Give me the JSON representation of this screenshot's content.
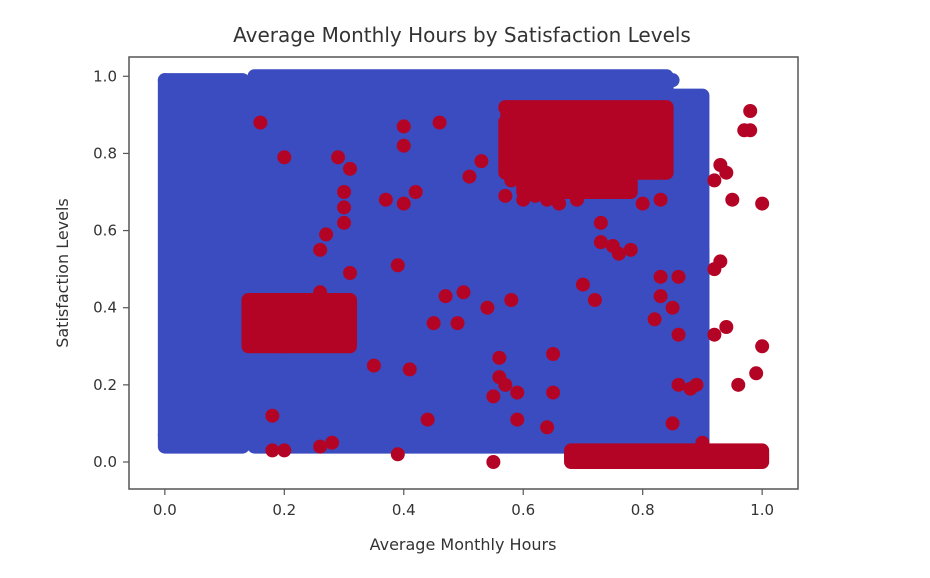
{
  "chart_data": {
    "type": "scatter",
    "title": "Average Monthly Hours by Satisfaction Levels",
    "xlabel": "Average Monthly Hours",
    "ylabel": "Satisfaction Levels",
    "xlim": [
      -0.06,
      1.06
    ],
    "ylim": [
      -0.07,
      1.05
    ],
    "xticks": [
      0.0,
      0.2,
      0.4,
      0.6,
      0.8,
      1.0
    ],
    "xtick_labels": [
      "0.0",
      "0.2",
      "0.4",
      "0.6",
      "0.8",
      "1.0"
    ],
    "yticks": [
      0.0,
      0.2,
      0.4,
      0.6,
      0.8,
      1.0
    ],
    "ytick_labels": [
      "0.0",
      "0.2",
      "0.4",
      "0.6",
      "0.8",
      "1.0"
    ],
    "grid": false,
    "series": [
      {
        "color": "#3a4cc0",
        "points": [
          [
            0.0,
            0.99
          ],
          [
            0.03,
            0.97
          ],
          [
            0.06,
            0.93
          ],
          [
            0.09,
            0.98
          ],
          [
            0.12,
            0.95
          ],
          [
            0.01,
            0.85
          ],
          [
            0.05,
            0.8
          ],
          [
            0.1,
            0.82
          ],
          [
            0.02,
            0.72
          ],
          [
            0.07,
            0.68
          ],
          [
            0.12,
            0.63
          ],
          [
            0.03,
            0.55
          ],
          [
            0.08,
            0.5
          ],
          [
            0.01,
            0.45
          ],
          [
            0.05,
            0.4
          ],
          [
            0.11,
            0.36
          ],
          [
            0.02,
            0.28
          ],
          [
            0.07,
            0.24
          ],
          [
            0.12,
            0.2
          ],
          [
            0.01,
            0.15
          ],
          [
            0.05,
            0.1
          ],
          [
            0.09,
            0.06
          ],
          [
            0.0,
            0.07
          ],
          [
            0.13,
            0.04
          ],
          [
            0.15,
            0.5
          ],
          [
            0.18,
            0.98
          ],
          [
            0.22,
            0.96
          ],
          [
            0.28,
            0.99
          ],
          [
            0.35,
            0.97
          ],
          [
            0.42,
            0.98
          ],
          [
            0.5,
            0.99
          ],
          [
            0.58,
            0.97
          ],
          [
            0.65,
            0.98
          ],
          [
            0.72,
            0.99
          ],
          [
            0.8,
            0.98
          ],
          [
            0.85,
            0.99
          ],
          [
            0.25,
            0.85
          ],
          [
            0.32,
            0.9
          ],
          [
            0.4,
            0.85
          ],
          [
            0.48,
            0.8
          ],
          [
            0.55,
            0.9
          ],
          [
            0.3,
            0.72
          ],
          [
            0.38,
            0.65
          ],
          [
            0.45,
            0.7
          ],
          [
            0.52,
            0.6
          ],
          [
            0.6,
            0.55
          ],
          [
            0.68,
            0.5
          ],
          [
            0.75,
            0.58
          ],
          [
            0.82,
            0.52
          ],
          [
            0.88,
            0.55
          ],
          [
            0.22,
            0.55
          ],
          [
            0.28,
            0.48
          ],
          [
            0.35,
            0.44
          ],
          [
            0.42,
            0.38
          ],
          [
            0.5,
            0.3
          ],
          [
            0.58,
            0.34
          ],
          [
            0.66,
            0.28
          ],
          [
            0.74,
            0.32
          ],
          [
            0.82,
            0.26
          ],
          [
            0.88,
            0.3
          ],
          [
            0.2,
            0.2
          ],
          [
            0.28,
            0.16
          ],
          [
            0.36,
            0.2
          ],
          [
            0.44,
            0.14
          ],
          [
            0.52,
            0.18
          ],
          [
            0.6,
            0.12
          ],
          [
            0.68,
            0.18
          ],
          [
            0.76,
            0.14
          ],
          [
            0.84,
            0.1
          ],
          [
            0.9,
            0.06
          ],
          [
            0.25,
            0.06
          ],
          [
            0.33,
            0.09
          ],
          [
            0.41,
            0.05
          ],
          [
            0.49,
            0.08
          ],
          [
            0.57,
            0.05
          ],
          [
            0.65,
            0.07
          ],
          [
            0.16,
            0.04
          ],
          [
            0.88,
            0.78
          ],
          [
            0.89,
            0.85
          ],
          [
            0.87,
            0.65
          ]
        ],
        "regions": [
          [
            0.0,
            0.13,
            0.04,
            0.99
          ],
          [
            0.15,
            0.84,
            0.55,
            1.0
          ],
          [
            0.15,
            0.9,
            0.04,
            0.55
          ],
          [
            0.84,
            0.9,
            0.04,
            0.95
          ]
        ]
      },
      {
        "color": "#b40426",
        "points": [
          [
            0.16,
            0.88
          ],
          [
            0.2,
            0.79
          ],
          [
            0.29,
            0.79
          ],
          [
            0.3,
            0.7
          ],
          [
            0.3,
            0.66
          ],
          [
            0.3,
            0.62
          ],
          [
            0.31,
            0.76
          ],
          [
            0.27,
            0.59
          ],
          [
            0.26,
            0.55
          ],
          [
            0.31,
            0.49
          ],
          [
            0.39,
            0.51
          ],
          [
            0.37,
            0.68
          ],
          [
            0.4,
            0.67
          ],
          [
            0.42,
            0.7
          ],
          [
            0.4,
            0.87
          ],
          [
            0.4,
            0.82
          ],
          [
            0.46,
            0.88
          ],
          [
            0.51,
            0.74
          ],
          [
            0.53,
            0.78
          ],
          [
            0.47,
            0.43
          ],
          [
            0.49,
            0.36
          ],
          [
            0.54,
            0.4
          ],
          [
            0.58,
            0.42
          ],
          [
            0.56,
            0.27
          ],
          [
            0.56,
            0.22
          ],
          [
            0.57,
            0.2
          ],
          [
            0.59,
            0.18
          ],
          [
            0.55,
            0.17
          ],
          [
            0.59,
            0.11
          ],
          [
            0.64,
            0.09
          ],
          [
            0.65,
            0.28
          ],
          [
            0.65,
            0.18
          ],
          [
            0.55,
            0.0
          ],
          [
            0.44,
            0.11
          ],
          [
            0.39,
            0.02
          ],
          [
            0.28,
            0.05
          ],
          [
            0.26,
            0.04
          ],
          [
            0.2,
            0.03
          ],
          [
            0.18,
            0.03
          ],
          [
            0.18,
            0.12
          ],
          [
            0.2,
            0.3
          ],
          [
            0.26,
            0.44
          ],
          [
            0.35,
            0.25
          ],
          [
            0.41,
            0.24
          ],
          [
            0.7,
            0.46
          ],
          [
            0.72,
            0.42
          ],
          [
            0.73,
            0.57
          ],
          [
            0.75,
            0.56
          ],
          [
            0.73,
            0.62
          ],
          [
            0.76,
            0.54
          ],
          [
            0.78,
            0.55
          ],
          [
            0.83,
            0.48
          ],
          [
            0.86,
            0.48
          ],
          [
            0.85,
            0.4
          ],
          [
            0.86,
            0.33
          ],
          [
            0.82,
            0.37
          ],
          [
            0.83,
            0.43
          ],
          [
            0.86,
            0.2
          ],
          [
            0.88,
            0.19
          ],
          [
            0.85,
            0.1
          ],
          [
            0.9,
            0.05
          ],
          [
            0.92,
            0.33
          ],
          [
            0.92,
            0.5
          ],
          [
            0.93,
            0.52
          ],
          [
            0.94,
            0.35
          ],
          [
            0.93,
            0.77
          ],
          [
            0.94,
            0.75
          ],
          [
            0.92,
            0.73
          ],
          [
            0.95,
            0.68
          ],
          [
            0.97,
            0.86
          ],
          [
            0.98,
            0.86
          ],
          [
            0.98,
            0.91
          ],
          [
            1.0,
            0.67
          ],
          [
            1.0,
            0.3
          ],
          [
            0.99,
            0.23
          ],
          [
            0.96,
            0.2
          ],
          [
            0.89,
            0.2
          ],
          [
            0.62,
            0.69
          ],
          [
            0.64,
            0.68
          ],
          [
            0.66,
            0.67
          ],
          [
            0.69,
            0.68
          ],
          [
            0.71,
            0.73
          ],
          [
            0.75,
            0.72
          ],
          [
            0.8,
            0.67
          ],
          [
            0.83,
            0.68
          ],
          [
            0.58,
            0.73
          ],
          [
            0.6,
            0.68
          ],
          [
            0.57,
            0.69
          ],
          [
            0.5,
            0.44
          ],
          [
            0.45,
            0.36
          ]
        ],
        "regions": [
          [
            0.14,
            0.31,
            0.3,
            0.42
          ],
          [
            0.57,
            0.84,
            0.75,
            0.92
          ],
          [
            0.6,
            0.78,
            0.7,
            0.78
          ],
          [
            0.68,
            1.0,
            0.0,
            0.03
          ]
        ]
      }
    ]
  }
}
